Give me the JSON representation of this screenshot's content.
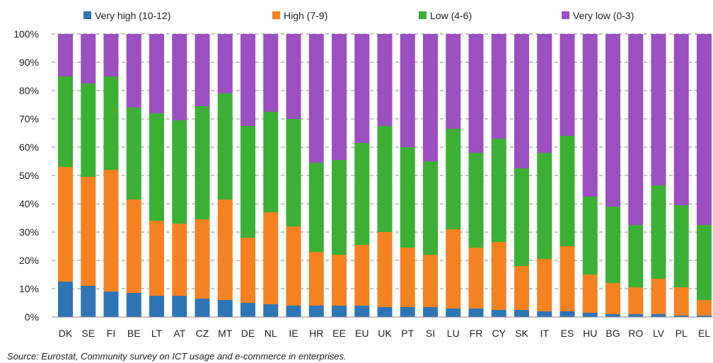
{
  "chart_data": {
    "type": "bar",
    "stacked": true,
    "normalized": true,
    "categories": [
      "DK",
      "SE",
      "FI",
      "BE",
      "LT",
      "AT",
      "CZ",
      "MT",
      "DE",
      "NL",
      "IE",
      "HR",
      "EE",
      "EU",
      "UK",
      "PT",
      "SI",
      "LU",
      "FR",
      "CY",
      "SK",
      "IT",
      "ES",
      "HU",
      "BG",
      "RO",
      "LV",
      "PL",
      "EL"
    ],
    "series": [
      {
        "name": "Very high (10-12)",
        "color": "#2e75b6",
        "values": [
          12.5,
          11,
          9,
          8.5,
          7.5,
          7.5,
          6.5,
          6,
          5,
          4.5,
          4,
          4,
          4,
          4,
          3.5,
          3.5,
          3.5,
          3,
          3,
          2.5,
          2.5,
          2,
          2,
          1.5,
          1,
          1,
          1,
          0.5,
          0.5
        ]
      },
      {
        "name": "High (7-9)",
        "color": "#f58220",
        "values": [
          40.5,
          38.5,
          43,
          33,
          26.5,
          25.5,
          28,
          35.5,
          23,
          32.5,
          28,
          19,
          18,
          21.5,
          26.5,
          21,
          18.5,
          28,
          21.5,
          24,
          15.5,
          18.5,
          23,
          13.5,
          11,
          9.5,
          12.5,
          10,
          5.5
        ]
      },
      {
        "name": "Low (4-6)",
        "color": "#3cb034",
        "values": [
          32,
          33,
          33,
          32.5,
          38,
          36.5,
          40,
          37.5,
          39.5,
          35.5,
          38,
          31.5,
          33.5,
          36,
          37.5,
          35.5,
          33,
          35.5,
          33.5,
          36.5,
          34.5,
          37.5,
          39,
          27.5,
          27,
          22,
          33,
          29,
          26.5
        ]
      },
      {
        "name": "Very low (0-3)",
        "color": "#9b4fc1",
        "values": [
          15,
          17.5,
          15,
          26,
          28,
          30.5,
          25.5,
          21,
          32.5,
          27.5,
          30,
          45.5,
          44.5,
          38.5,
          32.5,
          40,
          45,
          33.5,
          42,
          37,
          47.5,
          42,
          36,
          57.5,
          61,
          67.5,
          53.5,
          60.5,
          67.5
        ]
      }
    ],
    "y_ticks": [
      "0%",
      "10%",
      "20%",
      "30%",
      "40%",
      "50%",
      "60%",
      "70%",
      "80%",
      "90%",
      "100%"
    ],
    "ylim": [
      0,
      100
    ],
    "grid": "horizontal dashed",
    "legend_position": "top"
  },
  "source_note": "Source: Eurostat, Community survey on ICT usage and e-commerce in enterprises."
}
